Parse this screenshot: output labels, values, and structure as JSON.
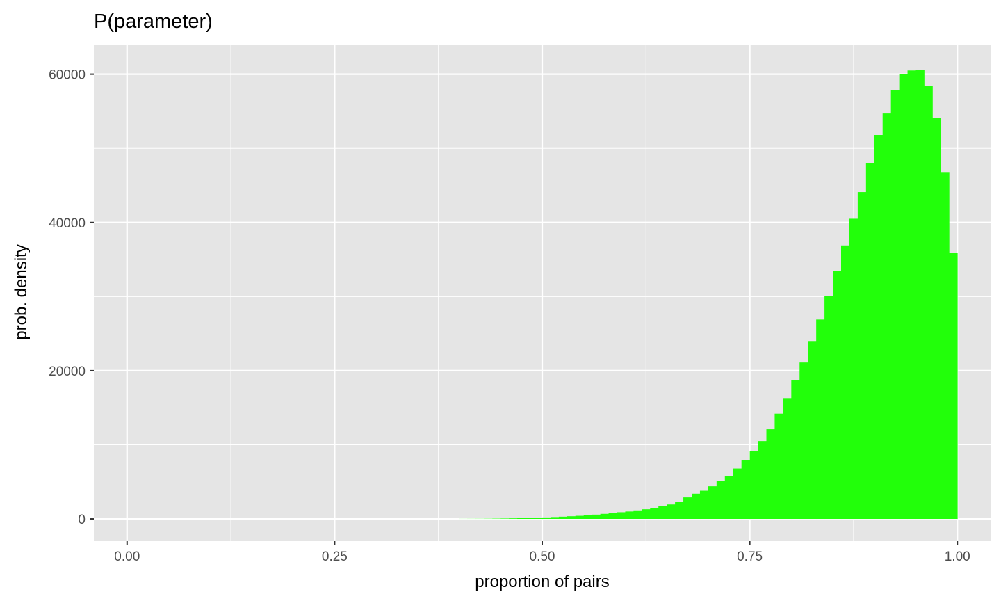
{
  "chart_data": {
    "type": "bar",
    "title": "P(parameter)",
    "xlabel": "proportion of pairs",
    "ylabel": "prob. density",
    "xlim": [
      -0.04,
      1.04
    ],
    "ylim": [
      -3000,
      64000
    ],
    "x_ticks": [
      {
        "value": 0.0,
        "label": "0.00"
      },
      {
        "value": 0.25,
        "label": "0.25"
      },
      {
        "value": 0.5,
        "label": "0.50"
      },
      {
        "value": 0.75,
        "label": "0.75"
      },
      {
        "value": 1.0,
        "label": "1.00"
      }
    ],
    "x_minor_breaks": [
      0.125,
      0.375,
      0.625,
      0.875
    ],
    "y_ticks": [
      {
        "value": 0,
        "label": "0"
      },
      {
        "value": 20000,
        "label": "20000"
      },
      {
        "value": 40000,
        "label": "40000"
      },
      {
        "value": 60000,
        "label": "60000"
      }
    ],
    "y_minor_breaks": [
      10000,
      30000,
      50000
    ],
    "grid": true,
    "panel_background": "#e5e5e5",
    "grid_color": "#ffffff",
    "bar_color": "#22ff0a",
    "bin_width": 0.01,
    "bin_starts": [
      0.4,
      0.41,
      0.42,
      0.43,
      0.44,
      0.45,
      0.46,
      0.47,
      0.48,
      0.49,
      0.5,
      0.51,
      0.52,
      0.53,
      0.54,
      0.55,
      0.56,
      0.57,
      0.58,
      0.59,
      0.6,
      0.61,
      0.62,
      0.63,
      0.64,
      0.65,
      0.66,
      0.67,
      0.68,
      0.69,
      0.7,
      0.71,
      0.72,
      0.73,
      0.74,
      0.75,
      0.76,
      0.77,
      0.78,
      0.79,
      0.8,
      0.81,
      0.82,
      0.83,
      0.84,
      0.85,
      0.86,
      0.87,
      0.88,
      0.89,
      0.9,
      0.91,
      0.92,
      0.93,
      0.94,
      0.95,
      0.96,
      0.97,
      0.98,
      0.99
    ],
    "values": [
      10,
      15,
      20,
      30,
      45,
      60,
      80,
      100,
      130,
      160,
      200,
      250,
      300,
      360,
      420,
      500,
      580,
      680,
      780,
      900,
      1000,
      1150,
      1300,
      1500,
      1700,
      1950,
      2300,
      2900,
      3400,
      3800,
      4400,
      5100,
      5800,
      6800,
      7900,
      9200,
      10500,
      12100,
      14200,
      16300,
      18700,
      21100,
      24000,
      26900,
      30100,
      33500,
      36900,
      40500,
      44100,
      48000,
      51800,
      54700,
      57900,
      60000,
      60500,
      60600,
      58400,
      54100,
      46800,
      35900
    ]
  }
}
